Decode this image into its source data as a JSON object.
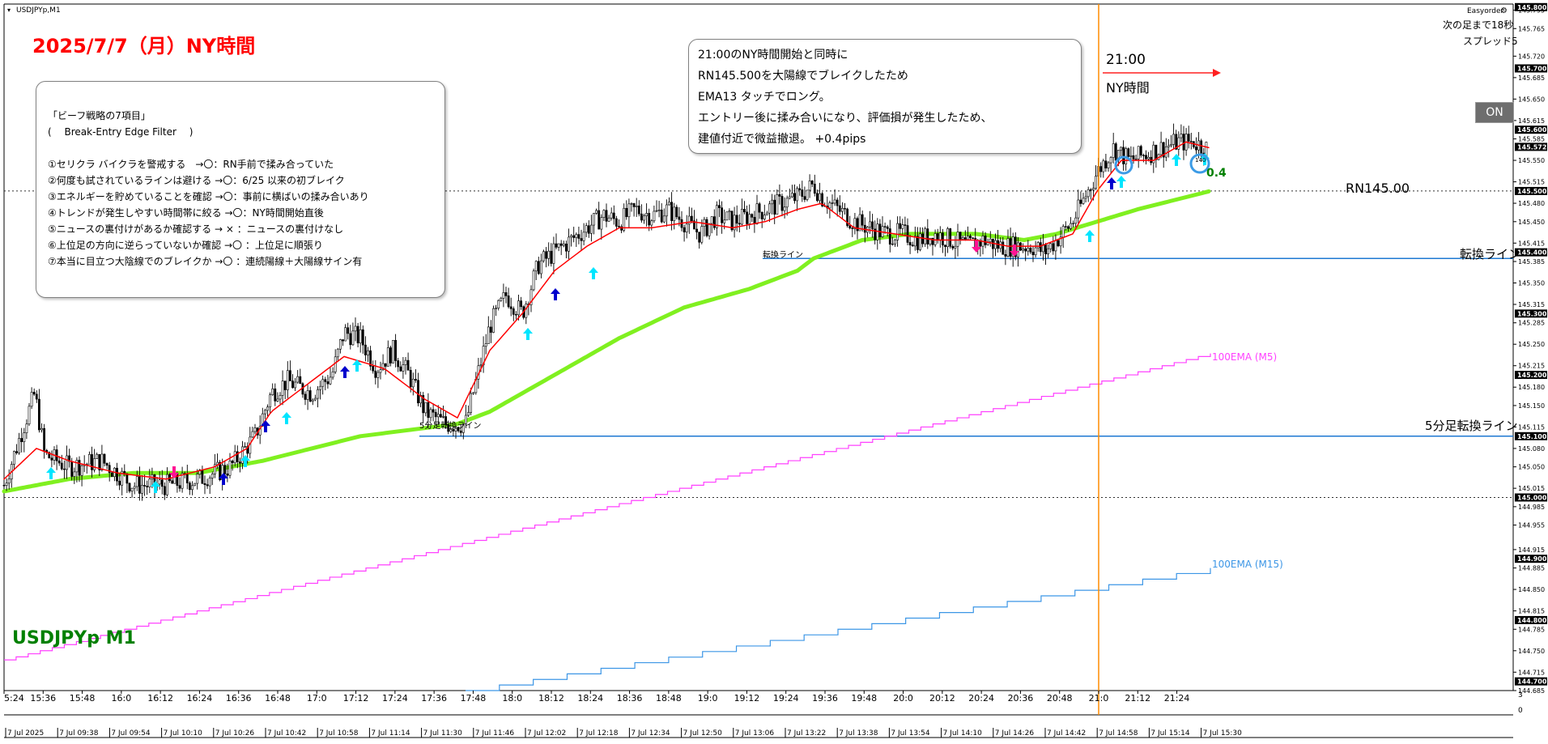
{
  "window": {
    "symbol_title": "USDJPYp,M1",
    "plugin": "Easyorder",
    "countdown": "次の足まで18秒",
    "spread": "スプレッド5",
    "on_button": "ON"
  },
  "headline": "2025/7/7（月）NY時間",
  "watermark": "USDJPYp M1",
  "rules_box": {
    "lines": [
      "「ビーフ戦略の7項目」",
      "(　 Break-Entry  Edge  Filter　 )",
      "",
      "①セリクラ  バイクラを警戒する　→〇：RN手前で揉み合っていた",
      "②何度も試されているラインは避ける →〇：6/25 以来の初ブレイク",
      "③エネルギーを貯めていることを確認 →〇：事前に横ばいの揉み合いあり",
      "④トレンドが発生しやすい時間帯に絞る →〇：NY時間開始直後",
      "⑤ニュースの裏付けがあるか確認する → × ：ニュースの裏付けなし",
      "⑥上位足の方向に逆らっていないか確認 →〇 ：上位足に順張り",
      "⑦本当に目立つ大陰線でのブレイクか →〇 ：連続陽線＋大陽線サイン有"
    ]
  },
  "note_box": {
    "lines": [
      "21:00のNY時間開始と同時に",
      "RN145.500を大陽線でブレイクしたため",
      "EMA13 タッチでロング。",
      "エントリー後に揉み合いになり、評価損が発生したため、",
      "建値付近で微益撤退。  +0.4pips"
    ]
  },
  "annotations": {
    "time_label": "21:00",
    "session_label": "NY時間",
    "profit_label": "0.4",
    "rn_label": "RN145.00",
    "switch_line_label": "転換ライン",
    "switch_line_small": "転換ライン",
    "m5_switch_label": "5分足転換ライン",
    "m5_switch_small": "5分足転換ライン",
    "ema_m5_label": "100EMA (M5)",
    "ema_m15_label": "100EMA (M15)",
    "exit_mark": "140"
  },
  "colors": {
    "headline": "#ff0000",
    "watermark": "#008000",
    "ema13": "#ff0000",
    "ema_green": "#80f020",
    "ema_m5": "#ff40ff",
    "ema_m15": "#3c96e6",
    "switch_lines": "#1e78d2",
    "session_vline": "#ff8c00",
    "buy_arrow_cyan": "#00e5ff",
    "buy_arrow_blue": "#0000cd",
    "sell_arrow": "#ff1493",
    "profit": "#008000"
  },
  "chart_data": {
    "type": "candlestick",
    "title": "USDJPYp,M1",
    "ylim": [
      144.685,
      145.805
    ],
    "y_ticks": [
      145.795,
      145.765,
      145.72,
      145.685,
      145.65,
      145.615,
      145.585,
      145.55,
      145.515,
      145.48,
      145.45,
      145.415,
      145.385,
      145.35,
      145.315,
      145.285,
      145.25,
      145.215,
      145.18,
      145.15,
      145.115,
      145.08,
      145.05,
      145.015,
      144.985,
      144.955,
      144.915,
      144.885,
      144.85,
      144.815,
      144.785,
      144.75,
      144.715,
      144.685
    ],
    "highlighted_prices": [
      {
        "label": "145.800",
        "color": "#000000"
      },
      {
        "label": "145.700",
        "color": "#000000"
      },
      {
        "label": "145.600",
        "color": "#000000"
      },
      {
        "label": "145.572",
        "color": "#000000"
      },
      {
        "label": "145.500",
        "color": "#000000"
      },
      {
        "label": "145.400",
        "color": "#000000"
      },
      {
        "label": "145.300",
        "color": "#000000"
      },
      {
        "label": "145.200",
        "color": "#000000"
      },
      {
        "label": "145.100",
        "color": "#000000"
      },
      {
        "label": "145.000",
        "color": "#000000"
      },
      {
        "label": "144.900",
        "color": "#000000"
      },
      {
        "label": "144.800",
        "color": "#000000"
      },
      {
        "label": "144.700",
        "color": "#000000"
      }
    ],
    "time_labels_top": [
      "5:24",
      "15:36",
      "15:48",
      "16:0",
      "16:12",
      "16:24",
      "16:36",
      "16:48",
      "17:0",
      "17:12",
      "17:24",
      "17:36",
      "17:48",
      "18:0",
      "18:12",
      "18:24",
      "18:36",
      "18:48",
      "19:0",
      "19:12",
      "19:24",
      "19:36",
      "19:48",
      "20:0",
      "20:12",
      "20:24",
      "20:36",
      "20:48",
      "21:0",
      "21:12",
      "21:24"
    ],
    "time_labels_bottom": [
      "7 Jul 2025",
      "7 Jul 09:38",
      "7 Jul 09:54",
      "7 Jul 10:10",
      "7 Jul 10:26",
      "7 Jul 10:42",
      "7 Jul 10:58",
      "7 Jul 11:14",
      "7 Jul 11:30",
      "7 Jul 11:46",
      "7 Jul 12:02",
      "7 Jul 12:18",
      "7 Jul 12:34",
      "7 Jul 12:50",
      "7 Jul 13:06",
      "7 Jul 13:22",
      "7 Jul 13:38",
      "7 Jul 13:54",
      "7 Jul 14:10",
      "7 Jul 14:26",
      "7 Jul 14:42",
      "7 Jul 14:58",
      "7 Jul 15:14",
      "7 Jul 15:30"
    ],
    "price_path": [
      [
        0,
        145.02
      ],
      [
        20,
        145.1
      ],
      [
        38,
        145.17
      ],
      [
        50,
        145.07
      ],
      [
        80,
        145.05
      ],
      [
        120,
        145.06
      ],
      [
        160,
        145.02
      ],
      [
        200,
        145.02
      ],
      [
        240,
        145.03
      ],
      [
        280,
        145.05
      ],
      [
        310,
        145.1
      ],
      [
        330,
        145.17
      ],
      [
        350,
        145.19
      ],
      [
        380,
        145.17
      ],
      [
        405,
        145.2
      ],
      [
        420,
        145.27
      ],
      [
        440,
        145.26
      ],
      [
        460,
        145.21
      ],
      [
        480,
        145.24
      ],
      [
        500,
        145.2
      ],
      [
        520,
        145.14
      ],
      [
        545,
        145.12
      ],
      [
        570,
        145.12
      ],
      [
        600,
        145.28
      ],
      [
        620,
        145.33
      ],
      [
        640,
        145.3
      ],
      [
        660,
        145.38
      ],
      [
        680,
        145.4
      ],
      [
        700,
        145.42
      ],
      [
        720,
        145.44
      ],
      [
        740,
        145.46
      ],
      [
        760,
        145.45
      ],
      [
        780,
        145.47
      ],
      [
        800,
        145.46
      ],
      [
        820,
        145.47
      ],
      [
        840,
        145.45
      ],
      [
        860,
        145.43
      ],
      [
        880,
        145.46
      ],
      [
        900,
        145.45
      ],
      [
        920,
        145.46
      ],
      [
        940,
        145.47
      ],
      [
        960,
        145.48
      ],
      [
        980,
        145.49
      ],
      [
        1000,
        145.51
      ],
      [
        1010,
        145.49
      ],
      [
        1030,
        145.47
      ],
      [
        1050,
        145.45
      ],
      [
        1070,
        145.44
      ],
      [
        1090,
        145.43
      ],
      [
        1110,
        145.43
      ],
      [
        1130,
        145.42
      ],
      [
        1150,
        145.43
      ],
      [
        1170,
        145.42
      ],
      [
        1190,
        145.41
      ],
      [
        1210,
        145.42
      ],
      [
        1230,
        145.41
      ],
      [
        1250,
        145.41
      ],
      [
        1270,
        145.41
      ],
      [
        1285,
        145.4
      ],
      [
        1300,
        145.42
      ],
      [
        1320,
        145.45
      ],
      [
        1335,
        145.49
      ],
      [
        1350,
        145.53
      ],
      [
        1370,
        145.57
      ],
      [
        1390,
        145.55
      ],
      [
        1410,
        145.56
      ],
      [
        1430,
        145.57
      ],
      [
        1450,
        145.58
      ],
      [
        1470,
        145.58
      ],
      [
        1485,
        145.57
      ]
    ],
    "series": [
      {
        "name": "EMA13",
        "points": [
          [
            0,
            145.03
          ],
          [
            40,
            145.08
          ],
          [
            80,
            145.06
          ],
          [
            140,
            145.04
          ],
          [
            200,
            145.03
          ],
          [
            260,
            145.05
          ],
          [
            300,
            145.08
          ],
          [
            330,
            145.14
          ],
          [
            370,
            145.18
          ],
          [
            420,
            145.23
          ],
          [
            470,
            145.21
          ],
          [
            520,
            145.16
          ],
          [
            560,
            145.13
          ],
          [
            600,
            145.24
          ],
          [
            640,
            145.3
          ],
          [
            680,
            145.37
          ],
          [
            720,
            145.41
          ],
          [
            760,
            145.44
          ],
          [
            800,
            145.44
          ],
          [
            850,
            145.45
          ],
          [
            900,
            145.44
          ],
          [
            940,
            145.45
          ],
          [
            980,
            145.47
          ],
          [
            1010,
            145.48
          ],
          [
            1050,
            145.44
          ],
          [
            1100,
            145.43
          ],
          [
            1150,
            145.42
          ],
          [
            1200,
            145.42
          ],
          [
            1240,
            145.41
          ],
          [
            1280,
            145.41
          ],
          [
            1320,
            145.43
          ],
          [
            1350,
            145.5
          ],
          [
            1380,
            145.55
          ],
          [
            1420,
            145.55
          ],
          [
            1460,
            145.58
          ],
          [
            1490,
            145.57
          ]
        ]
      },
      {
        "name": "EMA (green)",
        "points": [
          [
            0,
            145.01
          ],
          [
            80,
            145.03
          ],
          [
            160,
            145.04
          ],
          [
            240,
            145.04
          ],
          [
            320,
            145.06
          ],
          [
            380,
            145.08
          ],
          [
            440,
            145.1
          ],
          [
            500,
            145.11
          ],
          [
            560,
            145.12
          ],
          [
            600,
            145.14
          ],
          [
            680,
            145.2
          ],
          [
            760,
            145.26
          ],
          [
            840,
            145.31
          ],
          [
            920,
            145.34
          ],
          [
            980,
            145.37
          ],
          [
            1000,
            145.39
          ],
          [
            1060,
            145.42
          ],
          [
            1120,
            145.43
          ],
          [
            1200,
            145.43
          ],
          [
            1260,
            145.42
          ],
          [
            1300,
            145.43
          ],
          [
            1350,
            145.45
          ],
          [
            1400,
            145.47
          ],
          [
            1460,
            145.49
          ],
          [
            1490,
            145.5
          ]
        ]
      },
      {
        "name": "100EMA (M5)",
        "start": [
          0,
          144.735
        ],
        "end": [
          1490,
          145.235
        ],
        "steps": 100
      },
      {
        "name": "100EMA (M15)",
        "start": [
          570,
          144.685
        ],
        "end": [
          1490,
          144.885
        ],
        "steps": 22
      }
    ],
    "switch_lines": [
      {
        "name": "転換ライン",
        "price": 145.39
      },
      {
        "name": "5分足転換ライン",
        "price": 145.1
      }
    ],
    "dotted_levels": [
      145.5,
      145.0
    ]
  }
}
